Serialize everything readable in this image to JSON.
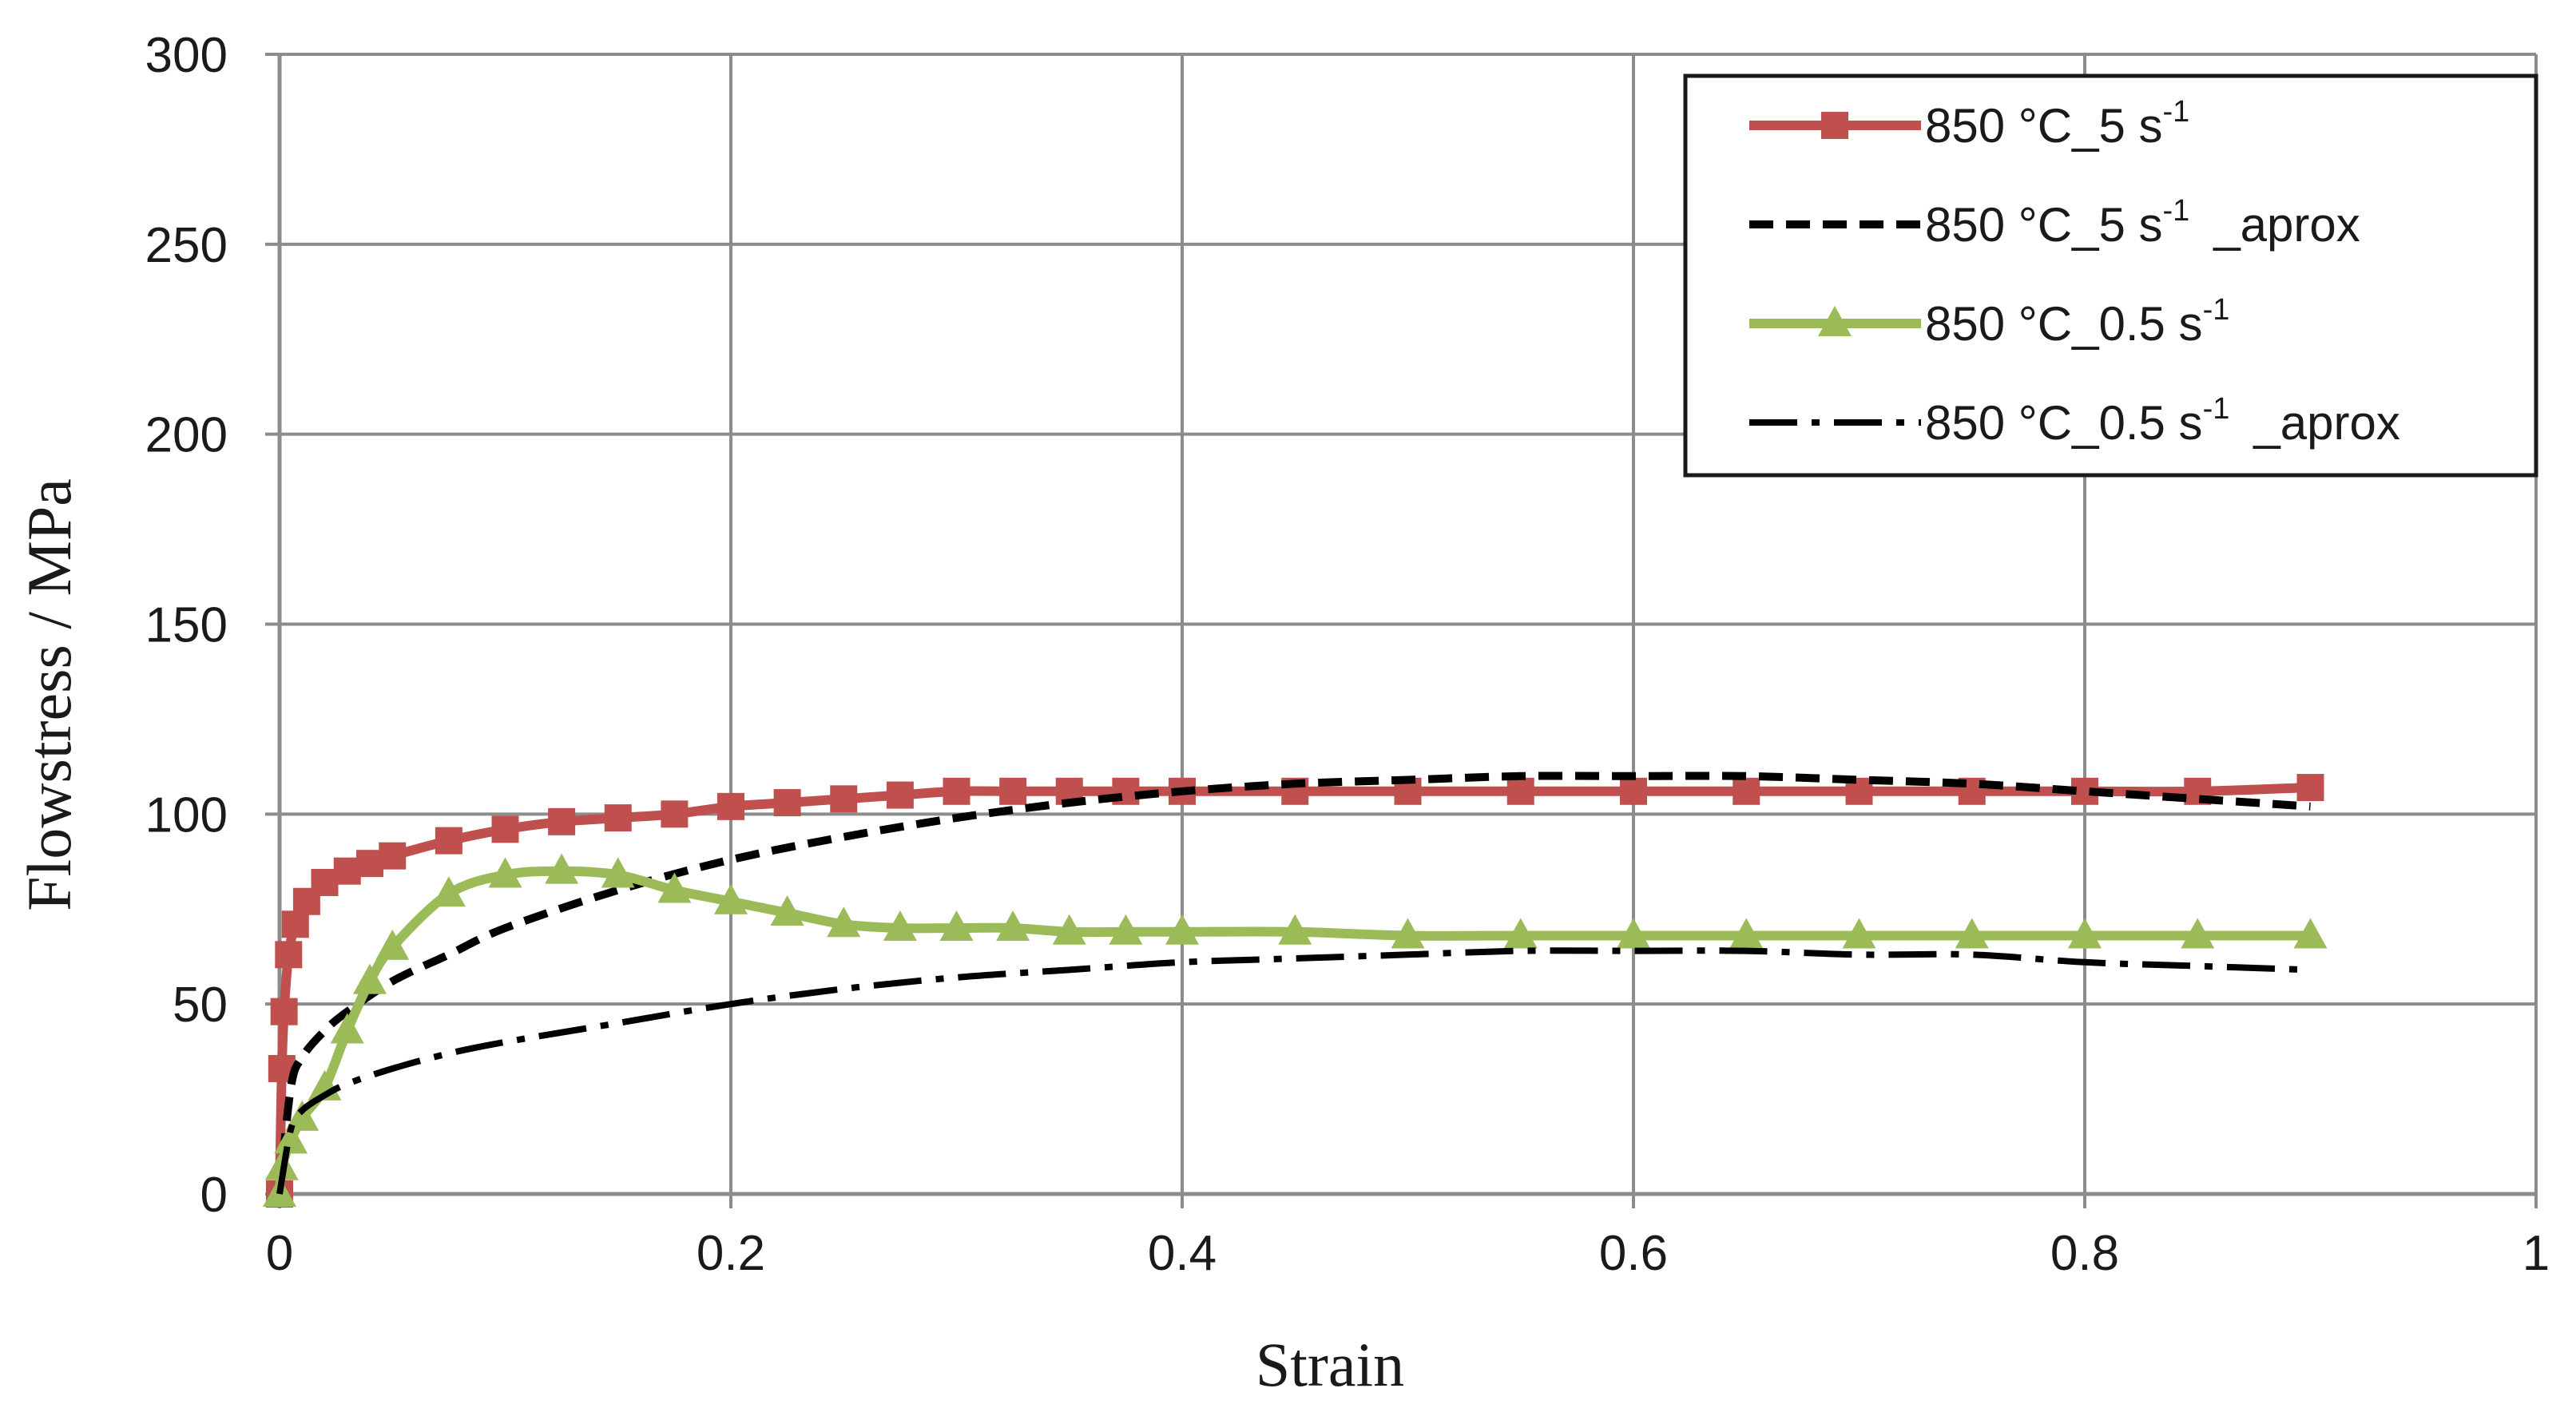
{
  "chart_data": {
    "type": "line",
    "title": "",
    "xlabel": "Strain",
    "ylabel": "Flowstress / MPa",
    "xlim": [
      0,
      1
    ],
    "ylim": [
      0,
      300
    ],
    "xticks": [
      0,
      0.2,
      0.4,
      0.6,
      0.8,
      1
    ],
    "xtick_labels": [
      "0",
      "0.2",
      "0.4",
      "0.6",
      "0.8",
      "1"
    ],
    "yticks": [
      0,
      50,
      100,
      150,
      200,
      250,
      300
    ],
    "ytick_labels": [
      "0",
      "50",
      "100",
      "150",
      "200",
      "250",
      "300"
    ],
    "grid": true,
    "legend_position": "top-right",
    "series": [
      {
        "name": "850 °C_5 s-1",
        "legend_main": "850 °C_5 s",
        "legend_sup": "-1",
        "legend_suffix": "",
        "color": "#c0504d",
        "line_style": "solid",
        "marker": "square",
        "x": [
          0,
          0.001,
          0.002,
          0.004,
          0.007,
          0.012,
          0.02,
          0.03,
          0.04,
          0.05,
          0.075,
          0.1,
          0.125,
          0.15,
          0.175,
          0.2,
          0.225,
          0.25,
          0.275,
          0.3,
          0.325,
          0.35,
          0.375,
          0.4,
          0.45,
          0.5,
          0.55,
          0.6,
          0.65,
          0.7,
          0.75,
          0.8,
          0.85,
          0.9
        ],
        "y": [
          0,
          33,
          48,
          63,
          71,
          77,
          82,
          85,
          87,
          89,
          93,
          96,
          98,
          99,
          100,
          102,
          103,
          104,
          105,
          106,
          106,
          106,
          106,
          106,
          106,
          106,
          106,
          106,
          106,
          106,
          106,
          106,
          106,
          107
        ]
      },
      {
        "name": "850 °C_5 s-1 _aprox",
        "legend_main": "850 °C_5 s",
        "legend_sup": "-1",
        "legend_suffix": "_aprox",
        "color": "#000000",
        "line_style": "dashed",
        "marker": "none",
        "x": [
          0,
          0.005,
          0.01,
          0.02,
          0.03,
          0.05,
          0.075,
          0.1,
          0.15,
          0.2,
          0.25,
          0.3,
          0.35,
          0.4,
          0.45,
          0.5,
          0.55,
          0.6,
          0.65,
          0.7,
          0.75,
          0.8,
          0.85,
          0.9
        ],
        "y": [
          0,
          28,
          36,
          43,
          48,
          56,
          63,
          70,
          80,
          88,
          94,
          99,
          103,
          106,
          108,
          109,
          110,
          110,
          110,
          109,
          108,
          106,
          104,
          102
        ]
      },
      {
        "name": "850 °C_0.5 s-1",
        "legend_main": "850 °C_0.5 s",
        "legend_sup": "-1",
        "legend_suffix": "",
        "color": "#9bbb59",
        "line_style": "solid",
        "marker": "triangle",
        "x": [
          0,
          0.001,
          0.005,
          0.01,
          0.02,
          0.03,
          0.04,
          0.05,
          0.075,
          0.1,
          0.125,
          0.15,
          0.175,
          0.2,
          0.225,
          0.25,
          0.275,
          0.3,
          0.325,
          0.35,
          0.375,
          0.4,
          0.45,
          0.5,
          0.55,
          0.6,
          0.65,
          0.7,
          0.75,
          0.8,
          0.85,
          0.9
        ],
        "y": [
          0,
          7,
          14,
          20,
          28,
          43,
          56,
          65,
          79,
          84,
          85,
          84,
          80,
          77,
          74,
          71,
          70,
          70,
          70,
          69,
          69,
          69,
          69,
          68,
          68,
          68,
          68,
          68,
          68,
          68,
          68,
          68
        ]
      },
      {
        "name": "850 °C_0.5 s-1 _aprox",
        "legend_main": "850 °C_0.5 s",
        "legend_sup": "-1",
        "legend_suffix": "_aprox",
        "color": "#000000",
        "line_style": "dashdot",
        "marker": "none",
        "x": [
          0,
          0.005,
          0.01,
          0.02,
          0.03,
          0.05,
          0.075,
          0.1,
          0.15,
          0.2,
          0.25,
          0.3,
          0.35,
          0.4,
          0.45,
          0.5,
          0.55,
          0.6,
          0.65,
          0.7,
          0.75,
          0.8,
          0.85,
          0.9
        ],
        "y": [
          0,
          17,
          22,
          26,
          29,
          33,
          37,
          40,
          45,
          50,
          54,
          57,
          59,
          61,
          62,
          63,
          64,
          64,
          64,
          63,
          63,
          61,
          60,
          59
        ]
      }
    ]
  }
}
